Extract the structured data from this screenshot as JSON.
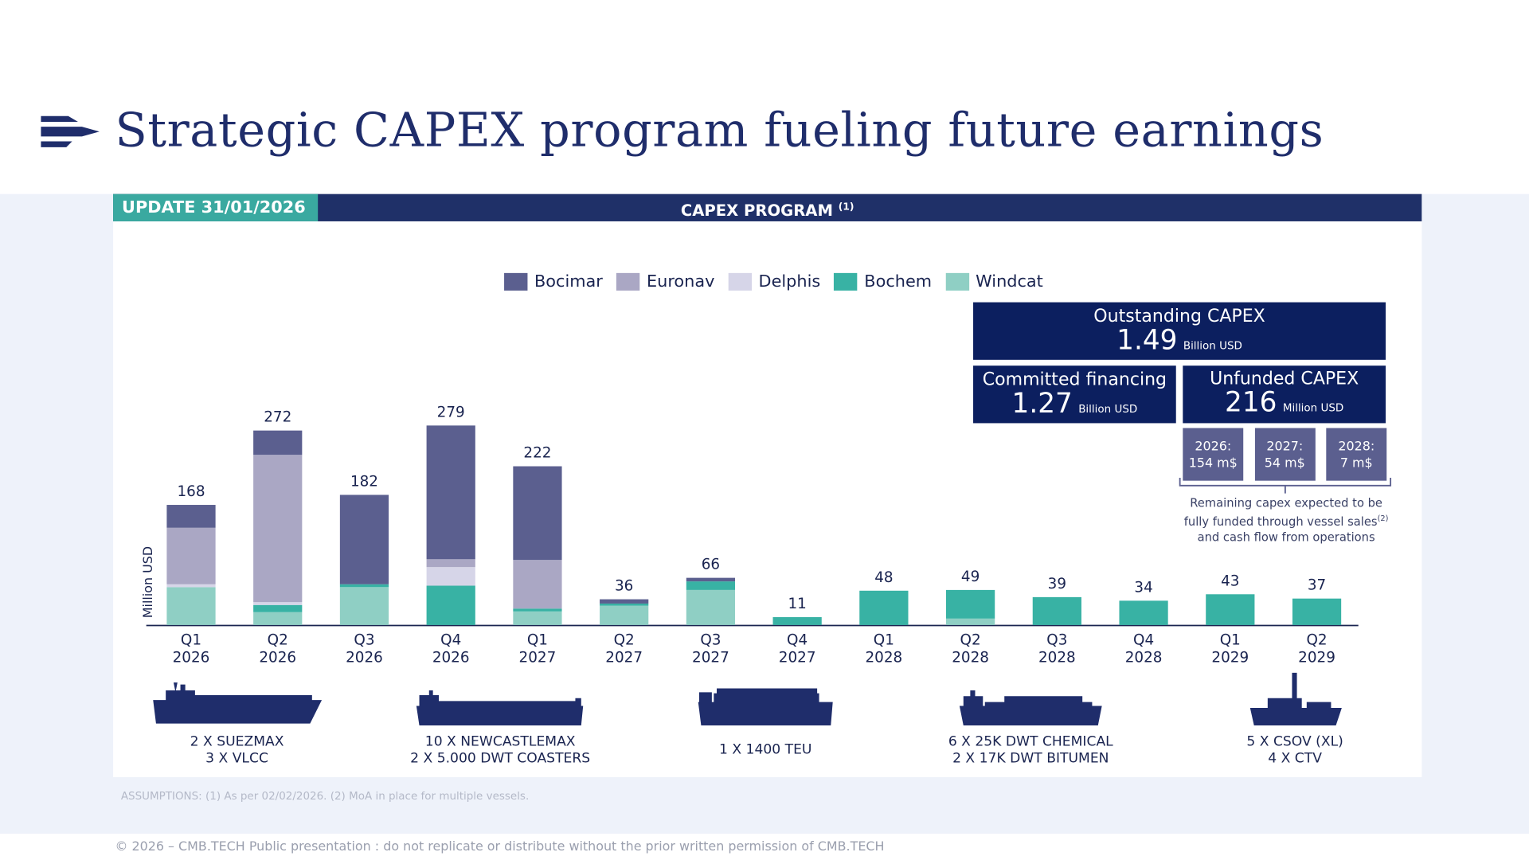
{
  "header": {
    "title": "Strategic CAPEX program fueling future earnings",
    "badge": "UPDATE 31/01/2026",
    "section": "CAPEX PROGRAM",
    "section_sup": "(1)"
  },
  "chart_data": {
    "type": "stacked_bar",
    "y_label": "Million USD",
    "categories": [
      "Q1 2026",
      "Q2 2026",
      "Q3 2026",
      "Q4 2026",
      "Q1 2027",
      "Q2 2027",
      "Q3 2027",
      "Q4 2027",
      "Q1 2028",
      "Q2 2028",
      "Q3 2028",
      "Q4 2028",
      "Q1 2029",
      "Q2 2029"
    ],
    "series": [
      {
        "name": "Bocimar",
        "color": "#5b5f8f",
        "values": [
          32,
          34,
          125,
          187,
          131,
          6,
          5,
          0,
          0,
          0,
          0,
          0,
          0,
          0
        ]
      },
      {
        "name": "Euronav",
        "color": "#aaa7c4",
        "values": [
          79,
          206,
          0,
          11,
          68,
          0,
          0,
          0,
          0,
          0,
          0,
          0,
          0,
          0
        ]
      },
      {
        "name": "Delphis",
        "color": "#d6d5e8",
        "values": [
          4,
          4,
          0,
          26,
          0,
          0,
          0,
          0,
          0,
          0,
          0,
          0,
          0,
          0
        ]
      },
      {
        "name": "Bochem",
        "color": "#38b2a4",
        "values": [
          0,
          10,
          4,
          55,
          4,
          3,
          12,
          11,
          48,
          40,
          39,
          34,
          43,
          37
        ]
      },
      {
        "name": "Windcat",
        "color": "#8fcfc4",
        "values": [
          53,
          18,
          53,
          0,
          19,
          27,
          49,
          0,
          0,
          9,
          0,
          0,
          0,
          0
        ]
      }
    ],
    "totals": [
      168,
      272,
      182,
      279,
      222,
      36,
      66,
      11,
      48,
      49,
      39,
      34,
      43,
      37
    ],
    "ylim": [
      0,
      300
    ],
    "legend": "top"
  },
  "capex": {
    "outstanding": {
      "label": "Outstanding CAPEX",
      "value": 1.49,
      "unit": "Billion USD"
    },
    "committed": {
      "label": "Committed financing",
      "value": 1.27,
      "unit": "Billion USD"
    },
    "unfunded": {
      "label": "Unfunded CAPEX",
      "value": 216,
      "unit": "Million USD"
    },
    "years": [
      {
        "year": "2026:",
        "amount": "154 m$"
      },
      {
        "year": "2027:",
        "amount": "54 m$"
      },
      {
        "year": "2028:",
        "amount": "7 m$"
      }
    ],
    "note_before": "Remaining capex expected to be fully funded through vessel sales",
    "note_sup": "(2)",
    "note_after": " and cash flow from operations"
  },
  "ships": [
    {
      "lines": [
        "2 X SUEZMAX",
        "3 X VLCC"
      ]
    },
    {
      "lines": [
        "10 X NEWCASTLEMAX",
        "2 X 5.000 DWT COASTERS"
      ]
    },
    {
      "lines": [
        "1 X 1400 TEU"
      ]
    },
    {
      "lines": [
        "6 X 25K DWT CHEMICAL",
        "2 X 17K DWT BITUMEN"
      ]
    },
    {
      "lines": [
        "5 X CSOV (XL)",
        "4 X CTV"
      ]
    }
  ],
  "assumptions": "ASSUMPTIONS: (1) As per 02/02/2026. (2) MoA in place for multiple vessels.",
  "footer": "© 2026 – CMB.TECH Public presentation : do not replicate or distribute without the prior written permission of CMB.TECH"
}
